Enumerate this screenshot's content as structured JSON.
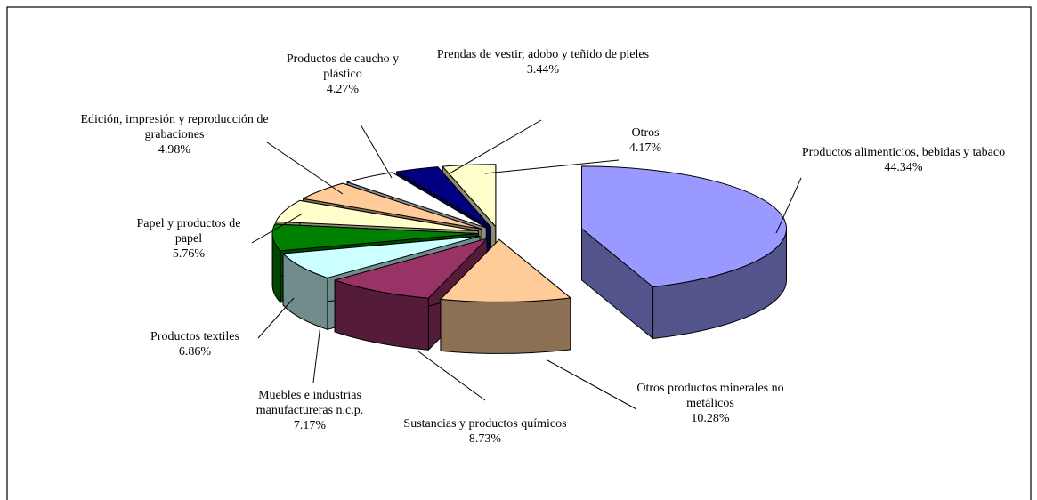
{
  "chart_data": {
    "type": "pie3d",
    "categories": [
      "Productos alimenticios, bebidas y tabaco",
      "Otros productos minerales no metálicos",
      "Sustancias y productos químicos",
      "Muebles e industrias manufactureras n.c.p.",
      "Productos textiles",
      "Papel y productos de papel",
      "Edición, impresión y reproducción de grabaciones",
      "Productos de caucho y plástico",
      "Prendas de vestir, adobo y teñido de pieles",
      "Otros"
    ],
    "values": [
      44.34,
      10.28,
      8.73,
      7.17,
      6.86,
      5.76,
      4.98,
      4.27,
      3.44,
      4.17
    ],
    "value_labels": [
      "44.34%",
      "10.28%",
      "8.73%",
      "7.17%",
      "6.86%",
      "5.76%",
      "4.98%",
      "4.27%",
      "3.44%",
      "4.17%"
    ],
    "colors": [
      "#9999ff",
      "#ffcc99",
      "#993366",
      "#ccffff",
      "#008000",
      "#ffffcc",
      "#ffcc99",
      "#ffffff",
      "#000080",
      "#ffffcc"
    ]
  }
}
